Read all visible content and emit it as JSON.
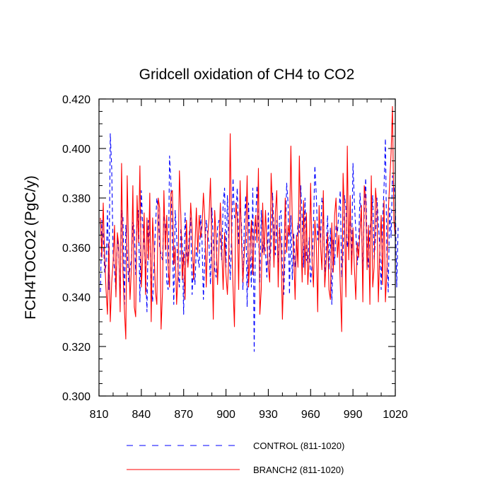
{
  "chart_data": {
    "type": "line",
    "title": "Gridcell oxidation of CH4 to CO2",
    "xlabel": "",
    "ylabel": "FCH4TOCO2  (PgC/y)",
    "xlim": [
      810,
      1020
    ],
    "ylim": [
      0.3,
      0.42
    ],
    "x_ticks": [
      810,
      840,
      870,
      900,
      930,
      960,
      990,
      1020
    ],
    "x_tick_labels": [
      "810",
      "840",
      "870",
      "900",
      "930",
      "960",
      "990",
      "1020"
    ],
    "y_ticks": [
      0.3,
      0.32,
      0.34,
      0.36,
      0.38,
      0.4,
      0.42
    ],
    "y_tick_labels": [
      "0.300",
      "0.320",
      "0.340",
      "0.360",
      "0.380",
      "0.400",
      "0.420"
    ],
    "x_start": 811,
    "series": [
      {
        "name": "CONTROL (811-1020)",
        "color": "#0000ff",
        "style": "dashed",
        "values": [
          0.342,
          0.371,
          0.365,
          0.35,
          0.353,
          0.375,
          0.343,
          0.406,
          0.392,
          0.357,
          0.351,
          0.342,
          0.364,
          0.358,
          0.339,
          0.375,
          0.372,
          0.337,
          0.369,
          0.358,
          0.346,
          0.352,
          0.355,
          0.37,
          0.368,
          0.349,
          0.373,
          0.375,
          0.338,
          0.383,
          0.369,
          0.361,
          0.352,
          0.334,
          0.371,
          0.366,
          0.346,
          0.338,
          0.353,
          0.368,
          0.38,
          0.375,
          0.36,
          0.357,
          0.355,
          0.373,
          0.37,
          0.346,
          0.343,
          0.397,
          0.386,
          0.363,
          0.337,
          0.375,
          0.365,
          0.351,
          0.344,
          0.368,
          0.362,
          0.333,
          0.374,
          0.358,
          0.353,
          0.366,
          0.372,
          0.341,
          0.354,
          0.345,
          0.36,
          0.356,
          0.352,
          0.373,
          0.363,
          0.339,
          0.357,
          0.371,
          0.366,
          0.361,
          0.345,
          0.376,
          0.362,
          0.351,
          0.348,
          0.368,
          0.371,
          0.364,
          0.355,
          0.378,
          0.384,
          0.352,
          0.381,
          0.362,
          0.347,
          0.364,
          0.388,
          0.372,
          0.373,
          0.384,
          0.361,
          0.376,
          0.369,
          0.343,
          0.37,
          0.381,
          0.336,
          0.378,
          0.36,
          0.344,
          0.384,
          0.318,
          0.371,
          0.385,
          0.368,
          0.346,
          0.375,
          0.358,
          0.364,
          0.358,
          0.348,
          0.374,
          0.352,
          0.362,
          0.382,
          0.366,
          0.357,
          0.371,
          0.35,
          0.373,
          0.375,
          0.352,
          0.341,
          0.359,
          0.386,
          0.378,
          0.341,
          0.373,
          0.347,
          0.366,
          0.352,
          0.36,
          0.37,
          0.366,
          0.385,
          0.372,
          0.352,
          0.38,
          0.355,
          0.354,
          0.364,
          0.346,
          0.353,
          0.369,
          0.393,
          0.381,
          0.363,
          0.371,
          0.362,
          0.38,
          0.377,
          0.346,
          0.36,
          0.373,
          0.351,
          0.368,
          0.337,
          0.363,
          0.353,
          0.369,
          0.366,
          0.374,
          0.383,
          0.348,
          0.357,
          0.381,
          0.376,
          0.36,
          0.365,
          0.371,
          0.355,
          0.394,
          0.378,
          0.367,
          0.353,
          0.361,
          0.382,
          0.371,
          0.349,
          0.374,
          0.388,
          0.361,
          0.352,
          0.368,
          0.371,
          0.381,
          0.355,
          0.364,
          0.38,
          0.37,
          0.36,
          0.343,
          0.371,
          0.384,
          0.404,
          0.358,
          0.342,
          0.376,
          0.364,
          0.389,
          0.385,
          0.379,
          0.344,
          0.368
        ]
      },
      {
        "name": "BRANCH2 (811-1020)",
        "color": "#ff0000",
        "style": "solid",
        "values": [
          0.372,
          0.356,
          0.378,
          0.356,
          0.343,
          0.333,
          0.362,
          0.33,
          0.346,
          0.354,
          0.369,
          0.34,
          0.366,
          0.361,
          0.334,
          0.394,
          0.35,
          0.335,
          0.323,
          0.389,
          0.358,
          0.339,
          0.352,
          0.385,
          0.336,
          0.332,
          0.381,
          0.362,
          0.393,
          0.344,
          0.356,
          0.374,
          0.341,
          0.372,
          0.355,
          0.382,
          0.33,
          0.372,
          0.359,
          0.342,
          0.337,
          0.38,
          0.376,
          0.327,
          0.342,
          0.383,
          0.359,
          0.373,
          0.352,
          0.344,
          0.382,
          0.383,
          0.353,
          0.36,
          0.337,
          0.349,
          0.391,
          0.373,
          0.347,
          0.358,
          0.339,
          0.371,
          0.352,
          0.36,
          0.378,
          0.367,
          0.347,
          0.36,
          0.376,
          0.358,
          0.373,
          0.364,
          0.368,
          0.382,
          0.371,
          0.344,
          0.364,
          0.372,
          0.388,
          0.359,
          0.331,
          0.375,
          0.364,
          0.345,
          0.36,
          0.378,
          0.359,
          0.343,
          0.366,
          0.349,
          0.341,
          0.357,
          0.406,
          0.363,
          0.344,
          0.328,
          0.378,
          0.372,
          0.343,
          0.387,
          0.362,
          0.346,
          0.358,
          0.365,
          0.389,
          0.344,
          0.358,
          0.371,
          0.349,
          0.366,
          0.373,
          0.362,
          0.392,
          0.333,
          0.343,
          0.378,
          0.357,
          0.375,
          0.362,
          0.352,
          0.346,
          0.39,
          0.375,
          0.352,
          0.374,
          0.383,
          0.344,
          0.368,
          0.36,
          0.331,
          0.353,
          0.38,
          0.358,
          0.369,
          0.365,
          0.401,
          0.37,
          0.357,
          0.339,
          0.365,
          0.352,
          0.397,
          0.368,
          0.346,
          0.379,
          0.349,
          0.374,
          0.345,
          0.356,
          0.386,
          0.355,
          0.344,
          0.371,
          0.362,
          0.334,
          0.377,
          0.361,
          0.351,
          0.383,
          0.344,
          0.354,
          0.366,
          0.343,
          0.339,
          0.37,
          0.35,
          0.373,
          0.38,
          0.356,
          0.365,
          0.345,
          0.326,
          0.39,
          0.372,
          0.34,
          0.401,
          0.355,
          0.381,
          0.349,
          0.368,
          0.352,
          0.339,
          0.362,
          0.356,
          0.367,
          0.377,
          0.338,
          0.385,
          0.38,
          0.351,
          0.369,
          0.337,
          0.389,
          0.344,
          0.352,
          0.384,
          0.376,
          0.338,
          0.359,
          0.373,
          0.345,
          0.379,
          0.338,
          0.35,
          0.374,
          0.386,
          0.398,
          0.417,
          0.371,
          0.364
        ]
      }
    ],
    "legend": {
      "placement": "bottom",
      "entries": [
        "CONTROL (811-1020)",
        "BRANCH2 (811-1020)"
      ]
    }
  }
}
